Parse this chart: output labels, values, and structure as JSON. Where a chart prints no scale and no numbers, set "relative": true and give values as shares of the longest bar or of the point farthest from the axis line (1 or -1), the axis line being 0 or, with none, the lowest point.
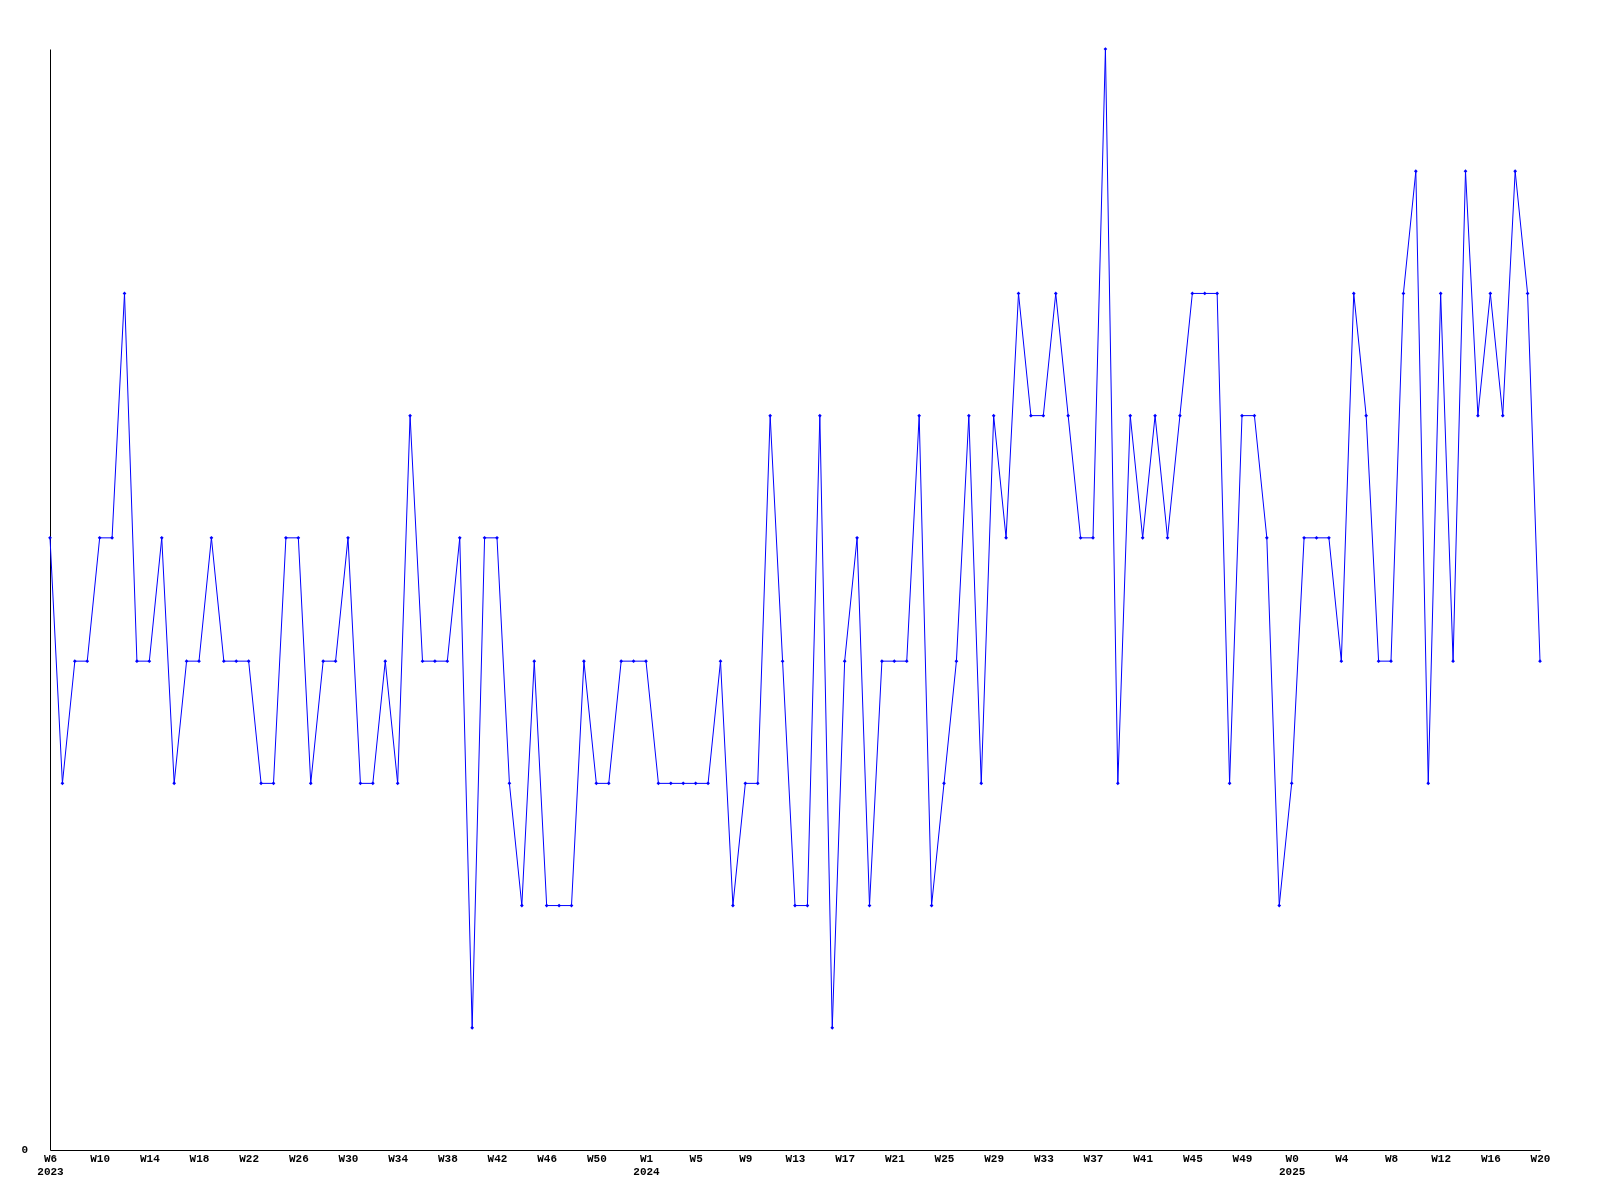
{
  "chart_data": {
    "type": "line",
    "relative": true,
    "annotations": [
      "0"
    ],
    "marker": "diamond",
    "grid": false,
    "categories": [
      "W6\n2023",
      null,
      null,
      null,
      "W10",
      null,
      null,
      null,
      "W14",
      null,
      null,
      null,
      "W18",
      null,
      null,
      null,
      "W22",
      null,
      null,
      null,
      "W26",
      null,
      null,
      null,
      "W30",
      null,
      null,
      null,
      "W34",
      null,
      null,
      null,
      "W38",
      null,
      null,
      null,
      "W42",
      null,
      null,
      null,
      "W46",
      null,
      null,
      null,
      "W50",
      null,
      null,
      null,
      "W1\n2024",
      null,
      null,
      null,
      "W5",
      null,
      null,
      null,
      "W9",
      null,
      null,
      null,
      "W13",
      null,
      null,
      null,
      "W17",
      null,
      null,
      null,
      "W21",
      null,
      null,
      null,
      "W25",
      null,
      null,
      null,
      "W29",
      null,
      null,
      null,
      "W33",
      null,
      null,
      null,
      "W37",
      null,
      null,
      null,
      "W41",
      null,
      null,
      null,
      "W45",
      null,
      null,
      null,
      "W49",
      null,
      null,
      null,
      "W0\n2025",
      null,
      null,
      null,
      "W4",
      null,
      null,
      null,
      "W8",
      null,
      null,
      null,
      "W12",
      null,
      null,
      null,
      "W16",
      null,
      null,
      null,
      "W20"
    ],
    "series": [
      {
        "color": "#0000ff",
        "values": [
          0.556,
          0.333,
          0.444,
          0.444,
          0.556,
          0.556,
          0.778,
          0.444,
          0.444,
          0.556,
          0.333,
          0.444,
          0.444,
          0.556,
          0.444,
          0.444,
          0.444,
          0.333,
          0.333,
          0.556,
          0.556,
          0.333,
          0.444,
          0.444,
          0.556,
          0.333,
          0.333,
          0.444,
          0.333,
          0.667,
          0.444,
          0.444,
          0.444,
          0.556,
          0.111,
          0.556,
          0.556,
          0.333,
          0.222,
          0.444,
          0.222,
          0.222,
          0.222,
          0.444,
          0.333,
          0.333,
          0.444,
          0.444,
          0.444,
          0.333,
          0.333,
          0.333,
          0.333,
          0.333,
          0.444,
          0.222,
          0.333,
          0.333,
          0.667,
          0.444,
          0.222,
          0.222,
          0.667,
          0.111,
          0.444,
          0.556,
          0.222,
          0.444,
          0.444,
          0.444,
          0.667,
          0.222,
          0.333,
          0.444,
          0.667,
          0.333,
          0.667,
          0.556,
          0.778,
          0.667,
          0.667,
          0.778,
          0.667,
          0.556,
          0.556,
          1,
          0.333,
          0.667,
          0.556,
          0.667,
          0.556,
          0.667,
          0.778,
          0.778,
          0.778,
          0.333,
          0.667,
          0.667,
          0.556,
          0.222,
          0.333,
          0.556,
          0.556,
          0.556,
          0.444,
          0.778,
          0.667,
          0.444,
          0.444,
          0.778,
          0.889,
          0.333,
          0.778,
          0.444,
          0.889,
          0.667,
          0.778,
          0.667,
          0.889,
          0.778,
          0.444
        ]
      }
    ]
  }
}
